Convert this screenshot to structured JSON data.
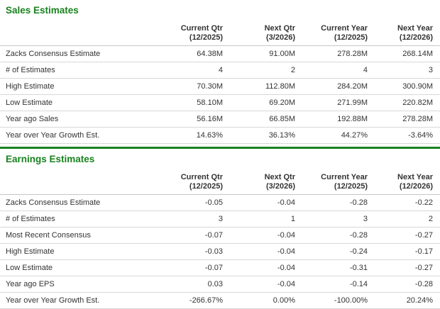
{
  "theme": {
    "accent_green": "#18821e",
    "row_border": "#d8d8d8",
    "text_color": "#333333",
    "background": "#ffffff"
  },
  "sales": {
    "title": "Sales Estimates",
    "columns": [
      {
        "label": "Current Qtr",
        "period": "(12/2025)"
      },
      {
        "label": "Next Qtr",
        "period": "(3/2026)"
      },
      {
        "label": "Current Year",
        "period": "(12/2025)"
      },
      {
        "label": "Next Year",
        "period": "(12/2026)"
      }
    ],
    "rows": [
      {
        "label": "Zacks Consensus Estimate",
        "values": [
          "64.38M",
          "91.00M",
          "278.28M",
          "268.14M"
        ]
      },
      {
        "label": "# of Estimates",
        "values": [
          "4",
          "2",
          "4",
          "3"
        ]
      },
      {
        "label": "High Estimate",
        "values": [
          "70.30M",
          "112.80M",
          "284.20M",
          "300.90M"
        ]
      },
      {
        "label": "Low Estimate",
        "values": [
          "58.10M",
          "69.20M",
          "271.99M",
          "220.82M"
        ]
      },
      {
        "label": "Year ago Sales",
        "values": [
          "56.16M",
          "66.85M",
          "192.88M",
          "278.28M"
        ]
      },
      {
        "label": "Year over Year Growth Est.",
        "values": [
          "14.63%",
          "36.13%",
          "44.27%",
          "-3.64%"
        ]
      }
    ]
  },
  "earnings": {
    "title": "Earnings Estimates",
    "columns": [
      {
        "label": "Current Qtr",
        "period": "(12/2025)"
      },
      {
        "label": "Next Qtr",
        "period": "(3/2026)"
      },
      {
        "label": "Current Year",
        "period": "(12/2025)"
      },
      {
        "label": "Next Year",
        "period": "(12/2026)"
      }
    ],
    "rows": [
      {
        "label": "Zacks Consensus Estimate",
        "values": [
          "-0.05",
          "-0.04",
          "-0.28",
          "-0.22"
        ]
      },
      {
        "label": "# of Estimates",
        "values": [
          "3",
          "1",
          "3",
          "2"
        ]
      },
      {
        "label": "Most Recent Consensus",
        "values": [
          "-0.07",
          "-0.04",
          "-0.28",
          "-0.27"
        ]
      },
      {
        "label": "High Estimate",
        "values": [
          "-0.03",
          "-0.04",
          "-0.24",
          "-0.17"
        ]
      },
      {
        "label": "Low Estimate",
        "values": [
          "-0.07",
          "-0.04",
          "-0.31",
          "-0.27"
        ]
      },
      {
        "label": "Year ago EPS",
        "values": [
          "0.03",
          "-0.04",
          "-0.14",
          "-0.28"
        ]
      },
      {
        "label": "Year over Year Growth Est.",
        "values": [
          "-266.67%",
          "0.00%",
          "-100.00%",
          "20.24%"
        ]
      }
    ]
  }
}
